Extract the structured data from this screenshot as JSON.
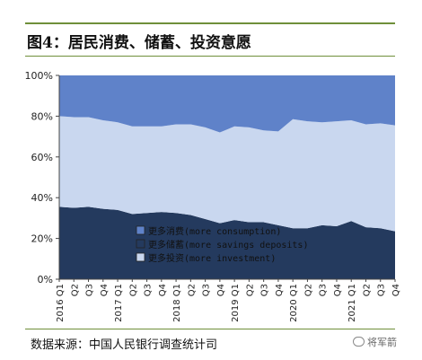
{
  "header": {
    "title": "图4：居民消费、储蓄、投资意愿"
  },
  "footer": {
    "source": "数据来源：中国人民银行调查统计司",
    "watermark": "将军箭"
  },
  "colors": {
    "consumption": "#5f82c9",
    "savings": "#243a5e",
    "investment": "#c9d7ef",
    "rule": "#6f8f3a"
  },
  "chart_data": {
    "type": "area",
    "stacked": true,
    "categories": [
      "2016Q1",
      "Q2",
      "Q3",
      "Q4",
      "2017Q1",
      "Q2",
      "Q3",
      "Q4",
      "2018Q1",
      "Q2",
      "Q3",
      "Q4",
      "2019Q1",
      "Q2",
      "Q3",
      "Q4",
      "2020Q1",
      "Q2",
      "Q3",
      "Q4",
      "2021Q1",
      "Q2",
      "Q3",
      "Q4"
    ],
    "tick_labels": [
      "2016 Q1",
      "Q2",
      "Q3",
      "Q4",
      "2017 Q1",
      "Q2",
      "Q3",
      "Q4",
      "2018 Q1",
      "Q2",
      "Q3",
      "Q4",
      "2019 Q1",
      "Q2",
      "Q3",
      "Q4",
      "2020 Q1",
      "Q2",
      "Q3",
      "Q4",
      "2021 Q1",
      "Q2",
      "Q3",
      "Q4"
    ],
    "y_ticks": [
      "0%",
      "20%",
      "40%",
      "60%",
      "80%",
      "100%"
    ],
    "ylim": [
      0,
      100
    ],
    "series": [
      {
        "name": "更多储蓄(more savings deposits)",
        "key": "savings",
        "values": [
          35.5,
          35,
          35.5,
          34.5,
          34,
          32,
          32.5,
          33,
          32.5,
          31.5,
          29.5,
          27.5,
          29,
          28,
          28,
          26.5,
          25,
          25,
          26.5,
          26,
          28.5,
          25.5,
          25,
          23.5
        ]
      },
      {
        "name": "更多投资(more investment)",
        "key": "investment",
        "values": [
          44.5,
          44.5,
          44,
          43.5,
          43,
          43,
          42.5,
          42,
          43.5,
          44.5,
          45,
          44.5,
          46,
          46.5,
          45,
          46,
          53.5,
          52.5,
          50.5,
          51.5,
          49.5,
          50.5,
          51.5,
          52
        ]
      },
      {
        "name": "更多消费(more consumption)",
        "key": "consumption",
        "values": [
          20,
          20.5,
          20.5,
          22,
          23,
          25,
          25,
          25,
          24,
          24,
          25.5,
          28,
          25,
          25.5,
          27,
          27.5,
          21.5,
          22.5,
          23,
          22.5,
          22,
          24,
          23.5,
          24.5
        ]
      }
    ],
    "legend": [
      {
        "label": "更多消费(more consumption)",
        "key": "consumption"
      },
      {
        "label": "更多储蓄(more savings deposits)",
        "key": "savings"
      },
      {
        "label": "更多投资(more investment)",
        "key": "investment"
      }
    ],
    "legend_position": "bottom-center-inside",
    "grid": false
  }
}
